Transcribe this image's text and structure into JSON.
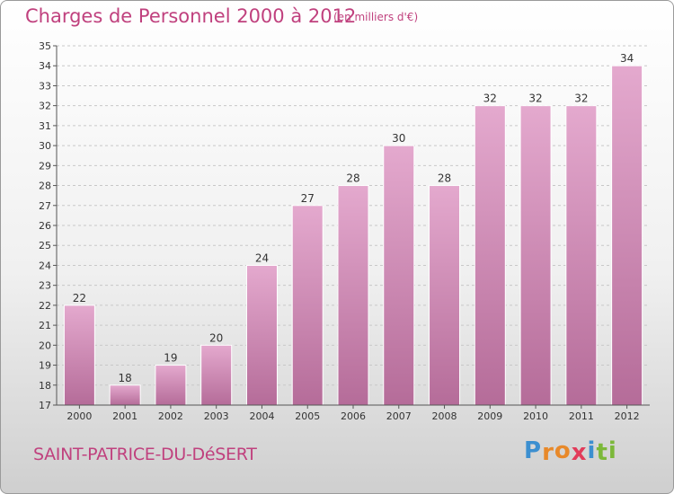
{
  "title": "Charges de Personnel 2000 à 2012",
  "unit_note": "(en milliers d'€)",
  "commune": "SAINT-PATRICE-DU-DéSERT",
  "logo": {
    "letters": [
      "P",
      "r",
      "o",
      "x",
      "i",
      "t",
      "i"
    ],
    "colors": [
      "#3c8fd0",
      "#e8892a",
      "#e8892a",
      "#e23b5a",
      "#3c8fd0",
      "#7cb83a",
      "#7cb83a"
    ]
  },
  "colors": {
    "accent": "#c0417e",
    "bar_top": "#e4a9ce",
    "bar_bottom": "#b56c99",
    "grid": "#c8c8c8"
  },
  "chart_data": {
    "type": "bar",
    "categories": [
      "2000",
      "2001",
      "2002",
      "2003",
      "2004",
      "2005",
      "2006",
      "2007",
      "2008",
      "2009",
      "2010",
      "2011",
      "2012"
    ],
    "values": [
      22,
      18,
      19,
      20,
      24,
      27,
      28,
      30,
      28,
      32,
      32,
      32,
      34
    ],
    "yticks": [
      17,
      18,
      19,
      20,
      21,
      22,
      23,
      24,
      25,
      26,
      27,
      28,
      29,
      30,
      31,
      32,
      33,
      34,
      35
    ],
    "ylim": [
      17,
      35
    ],
    "grid": true,
    "title": "Charges de Personnel 2000 à 2012",
    "xlabel": "",
    "ylabel": ""
  }
}
